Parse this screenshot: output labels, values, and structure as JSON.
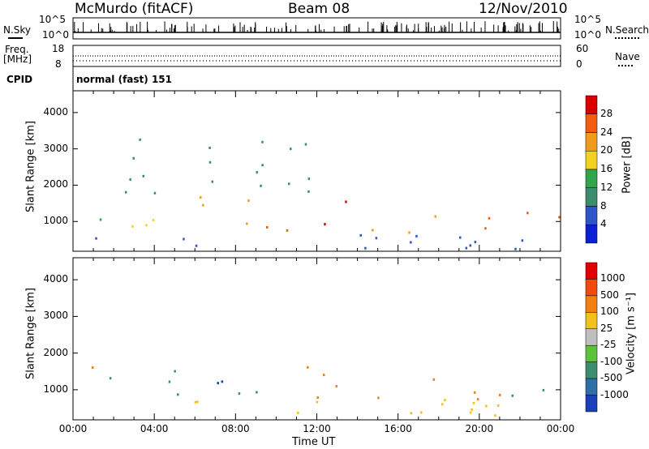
{
  "header": {
    "station": "McMurdo (fitACF)",
    "beam": "Beam 08",
    "date": "12/Nov/2010"
  },
  "noise_panel": {
    "left_label": "N.Sky",
    "right_label": "N.Search",
    "left_ticks": [
      "10^5",
      "10^0"
    ],
    "right_ticks": [
      "10^5",
      "10^0"
    ]
  },
  "freq_panel": {
    "left_label_line1": "Freq.",
    "left_label_line2": "[MHz]",
    "right_label": "Nave",
    "left_ticks": [
      "18",
      "8"
    ],
    "right_ticks": [
      "60",
      "0"
    ]
  },
  "cpid": {
    "label": "CPID",
    "value": "normal (fast) 151"
  },
  "chart_data": [
    {
      "type": "heatmap",
      "panel": "power",
      "title": "",
      "xlabel": "",
      "ylabel": "Slant Range [km]",
      "ylim": [
        180,
        4600
      ],
      "yticks": [
        "1000",
        "2000",
        "3000",
        "4000"
      ],
      "colorbar_label": "Power [dB]",
      "colorbar_ticks": [
        "28",
        "24",
        "20",
        "16",
        "12",
        "8",
        "4"
      ],
      "colors": [
        "#0a1fd6",
        "#2b55c9",
        "#3b8d6e",
        "#2fa64a",
        "#f2d21e",
        "#f29a1a",
        "#f25c0f",
        "#d90000"
      ],
      "regions": [
        {
          "t0": 0.0,
          "t1": 1.5,
          "r0": 800,
          "r1": 1600,
          "level": 3
        },
        {
          "t0": 1.5,
          "t1": 5.0,
          "r0": 700,
          "r1": 1400,
          "level": 4
        },
        {
          "t0": 5.0,
          "t1": 9.0,
          "r0": 800,
          "r1": 1700,
          "level": 5
        },
        {
          "t0": 9.5,
          "t1": 12.0,
          "r0": 700,
          "r1": 1500,
          "level": 6
        },
        {
          "t0": 12.0,
          "t1": 14.0,
          "r0": 700,
          "r1": 1600,
          "level": 7
        },
        {
          "t0": 14.0,
          "t1": 18.0,
          "r0": 650,
          "r1": 1300,
          "level": 5
        },
        {
          "t0": 18.0,
          "t1": 21.0,
          "r0": 700,
          "r1": 1300,
          "level": 6
        },
        {
          "t0": 21.5,
          "t1": 24.0,
          "r0": 700,
          "r1": 1400,
          "level": 6
        },
        {
          "t0": 0.0,
          "t1": 24.0,
          "r0": 180,
          "r1": 700,
          "level": 1
        },
        {
          "t0": 2.0,
          "t1": 12.0,
          "r0": 1700,
          "r1": 3300,
          "level": 2
        }
      ]
    },
    {
      "type": "heatmap",
      "panel": "velocity",
      "title": "",
      "xlabel": "Time UT",
      "ylabel": "Slant Range [km]",
      "ylim": [
        180,
        4600
      ],
      "yticks": [
        "1000",
        "2000",
        "3000",
        "4000"
      ],
      "xticks": [
        "00:00",
        "04:00",
        "08:00",
        "12:00",
        "16:00",
        "20:00",
        "00:00"
      ],
      "colorbar_label": "Velocity [m s⁻¹]",
      "colorbar_ticks": [
        "1000",
        "500",
        "100",
        "25",
        "-25",
        "-100",
        "-500",
        "-1000"
      ],
      "colors": [
        "#1b3fb8",
        "#2e6fa8",
        "#3b8d6e",
        "#5cc23a",
        "#bfbfbf",
        "#f2c21a",
        "#f27f0f",
        "#f24a0a",
        "#e00000"
      ],
      "regions": [
        {
          "t0": 0.0,
          "t1": 1.5,
          "r0": 800,
          "r1": 1600,
          "level": 6
        },
        {
          "t0": 1.5,
          "t1": 6.0,
          "r0": 700,
          "r1": 1500,
          "level": 2
        },
        {
          "t0": 6.0,
          "t1": 8.0,
          "r0": 800,
          "r1": 1700,
          "level": 0
        },
        {
          "t0": 8.0,
          "t1": 10.0,
          "r0": 800,
          "r1": 1600,
          "level": 2
        },
        {
          "t0": 11.5,
          "t1": 15.5,
          "r0": 700,
          "r1": 1750,
          "level": 6
        },
        {
          "t0": 15.5,
          "t1": 21.0,
          "r0": 700,
          "r1": 1300,
          "level": 6
        },
        {
          "t0": 19.0,
          "t1": 20.0,
          "r0": 700,
          "r1": 1000,
          "level": 4
        },
        {
          "t0": 21.5,
          "t1": 24.0,
          "r0": 700,
          "r1": 1300,
          "level": 2
        },
        {
          "t0": 0.0,
          "t1": 24.0,
          "r0": 180,
          "r1": 700,
          "level": 5
        }
      ]
    }
  ]
}
